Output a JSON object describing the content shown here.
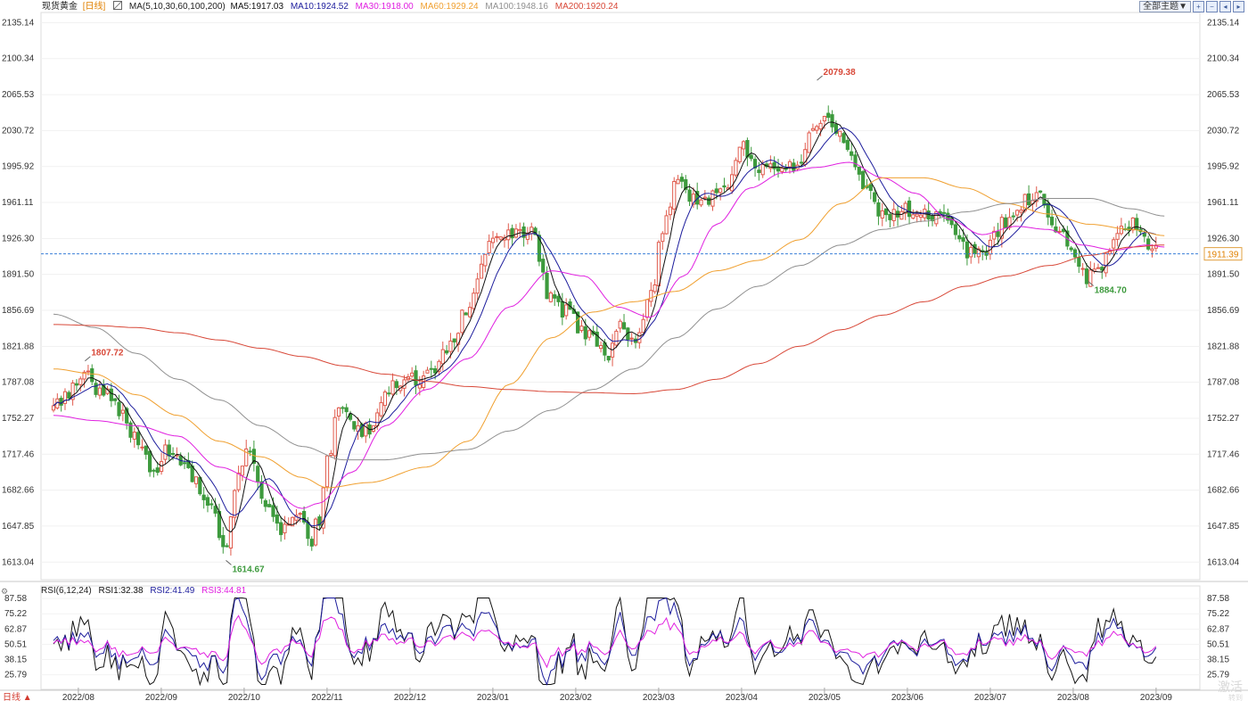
{
  "header": {
    "instrument": "现货黄金",
    "period_tag": "[日线]",
    "ma_label": "MA(5,10,30,60,100,200)",
    "ma_values": [
      {
        "text": "MA5:1917.03",
        "color": "#111111"
      },
      {
        "text": "MA10:1924.52",
        "color": "#1c1c9c"
      },
      {
        "text": "MA30:1918.00",
        "color": "#e020e0"
      },
      {
        "text": "MA60:1929.24",
        "color": "#f0a030"
      },
      {
        "text": "MA100:1948.16",
        "color": "#909090"
      },
      {
        "text": "MA200:1920.24",
        "color": "#d84838"
      }
    ]
  },
  "toolbar": {
    "theme_label": "全部主题▼",
    "buttons": [
      "zoom-in-icon",
      "zoom-out-icon",
      "prev-icon",
      "next-icon"
    ]
  },
  "bottom_bar": {
    "period_button": "日线 ▲"
  },
  "watermark": {
    "line1": "激活",
    "line2": "转到"
  },
  "colors": {
    "up": "#e05a4c",
    "down": "#3d9a3d",
    "bg": "#ffffff",
    "grid": "#f1f1f1"
  },
  "chart_data": [
    {
      "type": "candlestick",
      "title": "现货黄金 [日线]",
      "y_axis": {
        "ticks": [
          "2135.14",
          "2100.34",
          "2065.53",
          "2030.72",
          "1995.92",
          "1961.11",
          "1926.30",
          "1891.50",
          "1856.69",
          "1821.88",
          "1787.08",
          "1752.27",
          "1717.46",
          "1682.66",
          "1647.85",
          "1613.04"
        ],
        "range": [
          1596.0,
          2145.0
        ]
      },
      "x_axis": {
        "ticks": [
          "2022/08",
          "2022/09",
          "2022/10",
          "2022/11",
          "2022/12",
          "2023/01",
          "2023/02",
          "2023/03",
          "2023/04",
          "2023/05",
          "2023/06",
          "2023/07",
          "2023/08",
          "2023/09"
        ]
      },
      "current_price": "1911.39",
      "annotations": [
        {
          "label": "1807.72",
          "value": 1807.72,
          "month_index": 0.38,
          "kind": "high"
        },
        {
          "label": "1614.67",
          "value": 1614.67,
          "month_index": 2.08,
          "kind": "low"
        },
        {
          "label": "2079.38",
          "value": 2079.38,
          "month_index": 9.21,
          "kind": "high"
        },
        {
          "label": "1884.70",
          "value": 1884.7,
          "month_index": 12.48,
          "kind": "low"
        }
      ],
      "price_path": [
        [
          0.0,
          1760
        ],
        [
          0.15,
          1778
        ],
        [
          0.38,
          1798
        ],
        [
          0.55,
          1780
        ],
        [
          0.85,
          1755
        ],
        [
          1.0,
          1730
        ],
        [
          1.2,
          1700
        ],
        [
          1.35,
          1720
        ],
        [
          1.6,
          1705
        ],
        [
          1.9,
          1665
        ],
        [
          2.08,
          1625
        ],
        [
          2.2,
          1690
        ],
        [
          2.35,
          1720
        ],
        [
          2.55,
          1670
        ],
        [
          2.75,
          1645
        ],
        [
          2.95,
          1660
        ],
        [
          3.1,
          1635
        ],
        [
          3.2,
          1655
        ],
        [
          3.3,
          1710
        ],
        [
          3.45,
          1770
        ],
        [
          3.65,
          1740
        ],
        [
          3.85,
          1745
        ],
        [
          4.1,
          1785
        ],
        [
          4.35,
          1790
        ],
        [
          4.55,
          1800
        ],
        [
          4.75,
          1820
        ],
        [
          5.0,
          1860
        ],
        [
          5.3,
          1920
        ],
        [
          5.55,
          1935
        ],
        [
          5.8,
          1930
        ],
        [
          5.95,
          1875
        ],
        [
          6.2,
          1855
        ],
        [
          6.45,
          1830
        ],
        [
          6.7,
          1815
        ],
        [
          6.85,
          1840
        ],
        [
          7.0,
          1830
        ],
        [
          7.2,
          1870
        ],
        [
          7.35,
          1935
        ],
        [
          7.5,
          1980
        ],
        [
          7.8,
          1960
        ],
        [
          8.1,
          1975
        ],
        [
          8.3,
          2020
        ],
        [
          8.5,
          1995
        ],
        [
          8.75,
          1990
        ],
        [
          9.0,
          1995
        ],
        [
          9.15,
          2030
        ],
        [
          9.3,
          2045
        ],
        [
          9.45,
          2025
        ],
        [
          9.6,
          2010
        ],
        [
          9.8,
          1970
        ],
        [
          10.0,
          1950
        ],
        [
          10.3,
          1955
        ],
        [
          10.6,
          1950
        ],
        [
          10.8,
          1945
        ],
        [
          11.0,
          1915
        ],
        [
          11.25,
          1915
        ],
        [
          11.45,
          1940
        ],
        [
          11.65,
          1960
        ],
        [
          11.9,
          1965
        ],
        [
          12.1,
          1935
        ],
        [
          12.3,
          1910
        ],
        [
          12.48,
          1888
        ],
        [
          12.65,
          1902
        ],
        [
          12.85,
          1930
        ],
        [
          13.0,
          1940
        ],
        [
          13.15,
          1925
        ],
        [
          13.3,
          1915
        ]
      ],
      "series": [
        {
          "name": "MA5",
          "value": 1917.03,
          "color": "#111111"
        },
        {
          "name": "MA10",
          "value": 1924.52,
          "color": "#1c1c9c"
        },
        {
          "name": "MA30",
          "value": 1918.0,
          "color": "#e020e0",
          "path": [
            [
              0.0,
              1755
            ],
            [
              0.5,
              1750
            ],
            [
              1.0,
              1745
            ],
            [
              1.5,
              1735
            ],
            [
              2.0,
              1705
            ],
            [
              2.5,
              1690
            ],
            [
              3.0,
              1665
            ],
            [
              3.2,
              1670
            ],
            [
              3.6,
              1700
            ],
            [
              4.0,
              1745
            ],
            [
              4.5,
              1780
            ],
            [
              5.0,
              1810
            ],
            [
              5.5,
              1860
            ],
            [
              6.0,
              1895
            ],
            [
              6.4,
              1890
            ],
            [
              6.8,
              1860
            ],
            [
              7.2,
              1850
            ],
            [
              7.6,
              1890
            ],
            [
              8.0,
              1940
            ],
            [
              8.4,
              1975
            ],
            [
              8.8,
              1990
            ],
            [
              9.2,
              1995
            ],
            [
              9.6,
              2000
            ],
            [
              10.0,
              1985
            ],
            [
              10.4,
              1970
            ],
            [
              10.8,
              1945
            ],
            [
              11.2,
              1930
            ],
            [
              11.6,
              1938
            ],
            [
              12.0,
              1935
            ],
            [
              12.4,
              1920
            ],
            [
              12.8,
              1915
            ],
            [
              13.2,
              1920
            ],
            [
              13.4,
              1918
            ]
          ]
        },
        {
          "name": "MA60",
          "value": 1929.24,
          "color": "#f0a030",
          "path": [
            [
              0.0,
              1800
            ],
            [
              0.5,
              1795
            ],
            [
              1.0,
              1775
            ],
            [
              1.5,
              1755
            ],
            [
              2.0,
              1730
            ],
            [
              2.5,
              1715
            ],
            [
              3.0,
              1695
            ],
            [
              3.3,
              1685
            ],
            [
              3.8,
              1690
            ],
            [
              4.5,
              1705
            ],
            [
              5.0,
              1730
            ],
            [
              5.5,
              1785
            ],
            [
              6.0,
              1830
            ],
            [
              6.5,
              1855
            ],
            [
              7.0,
              1865
            ],
            [
              7.5,
              1875
            ],
            [
              8.0,
              1895
            ],
            [
              8.5,
              1905
            ],
            [
              9.0,
              1925
            ],
            [
              9.5,
              1960
            ],
            [
              10.0,
              1985
            ],
            [
              10.5,
              1985
            ],
            [
              11.0,
              1975
            ],
            [
              11.5,
              1960
            ],
            [
              12.0,
              1950
            ],
            [
              12.5,
              1940
            ],
            [
              13.0,
              1935
            ],
            [
              13.4,
              1929
            ]
          ]
        },
        {
          "name": "MA100",
          "value": 1948.16,
          "color": "#909090",
          "path": [
            [
              0.0,
              1853
            ],
            [
              0.5,
              1840
            ],
            [
              1.0,
              1815
            ],
            [
              1.5,
              1790
            ],
            [
              2.0,
              1770
            ],
            [
              2.5,
              1745
            ],
            [
              3.0,
              1725
            ],
            [
              3.5,
              1712
            ],
            [
              4.0,
              1712
            ],
            [
              4.5,
              1718
            ],
            [
              5.0,
              1722
            ],
            [
              5.5,
              1740
            ],
            [
              6.0,
              1760
            ],
            [
              6.5,
              1780
            ],
            [
              7.0,
              1800
            ],
            [
              7.5,
              1830
            ],
            [
              8.0,
              1858
            ],
            [
              8.5,
              1880
            ],
            [
              9.0,
              1900
            ],
            [
              9.5,
              1920
            ],
            [
              10.0,
              1935
            ],
            [
              10.5,
              1943
            ],
            [
              11.0,
              1952
            ],
            [
              11.5,
              1960
            ],
            [
              12.0,
              1965
            ],
            [
              12.5,
              1965
            ],
            [
              13.0,
              1955
            ],
            [
              13.4,
              1948
            ]
          ]
        },
        {
          "name": "MA200",
          "value": 1920.24,
          "color": "#d84838",
          "path": [
            [
              0.0,
              1843
            ],
            [
              0.5,
              1842
            ],
            [
              1.0,
              1840
            ],
            [
              1.5,
              1835
            ],
            [
              2.0,
              1828
            ],
            [
              2.5,
              1820
            ],
            [
              3.0,
              1812
            ],
            [
              3.5,
              1803
            ],
            [
              4.0,
              1795
            ],
            [
              4.5,
              1788
            ],
            [
              5.0,
              1783
            ],
            [
              5.5,
              1780
            ],
            [
              6.0,
              1778
            ],
            [
              6.5,
              1777
            ],
            [
              7.0,
              1776
            ],
            [
              7.5,
              1780
            ],
            [
              8.0,
              1790
            ],
            [
              8.5,
              1805
            ],
            [
              9.0,
              1822
            ],
            [
              9.5,
              1838
            ],
            [
              10.0,
              1852
            ],
            [
              10.5,
              1865
            ],
            [
              11.0,
              1880
            ],
            [
              11.5,
              1890
            ],
            [
              12.0,
              1900
            ],
            [
              12.5,
              1910
            ],
            [
              13.0,
              1918
            ],
            [
              13.4,
              1920
            ]
          ]
        }
      ]
    },
    {
      "type": "line",
      "title": "RSI(6,12,24)",
      "y_axis": {
        "ticks": [
          "87.58",
          "75.22",
          "62.87",
          "50.51",
          "38.15",
          "25.79"
        ],
        "range": [
          14.0,
          92.0
        ]
      },
      "series": [
        {
          "name": "RSI1",
          "value": 32.38,
          "color": "#111111",
          "amplitude": 1.0
        },
        {
          "name": "RSI2",
          "value": 41.49,
          "color": "#1c1c9c",
          "amplitude": 0.6
        },
        {
          "name": "RSI3",
          "value": 44.81,
          "color": "#e020e0",
          "amplitude": 0.3
        }
      ],
      "legend": {
        "name": "RSI(6,12,24)",
        "items": [
          "RSI1:32.38",
          "RSI2:41.49",
          "RSI3:44.81"
        ]
      }
    }
  ]
}
